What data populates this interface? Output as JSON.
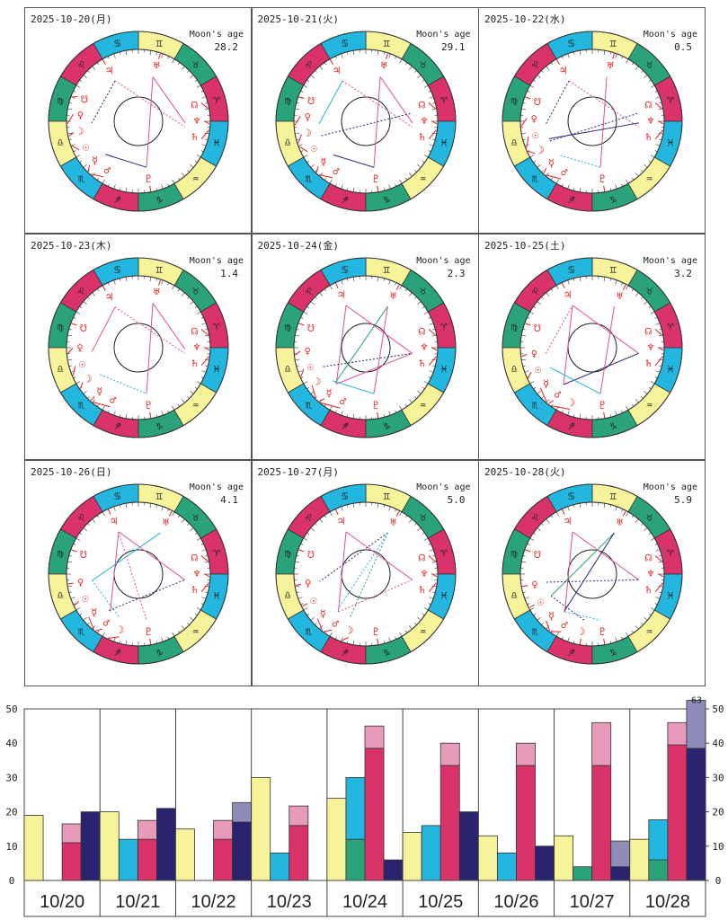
{
  "labels": {
    "moon_age": "Moon's age"
  },
  "colors": {
    "fire": "#d9336a",
    "earth": "#2ba37a",
    "air": "#f7f39a",
    "water": "#23b6df",
    "glyph": "#e8201f",
    "navy": "#2a2470",
    "pink": "#e0519a",
    "cyan": "#23b6df",
    "green": "#2ba37a"
  },
  "zodiac": [
    "♈",
    "♉",
    "♊",
    "♋",
    "♌",
    "♍",
    "♎",
    "♏",
    "♐",
    "♑",
    "♒",
    "♓"
  ],
  "planet_glyphs": {
    "sun": "☉",
    "moon": "☽",
    "mercury": "☿",
    "venus": "♀",
    "mars": "♂",
    "jupiter": "♃",
    "saturn": "♄",
    "uranus": "♅",
    "neptune": "♆",
    "pluto": "♇",
    "node": "☊",
    "snode": "☋"
  },
  "charts": [
    {
      "date": "2025-10-20(月)",
      "moon_age": "28.2",
      "planets": {
        "sun": 200,
        "moon": 192,
        "mercury": 225,
        "venus": 182,
        "mars": 228,
        "jupiter": 120,
        "saturn": 353,
        "uranus": 72,
        "neptune": 358,
        "pluto": 280,
        "node": 10,
        "snode": 160
      },
      "aspects": [
        [
          "jupiter",
          "venus",
          "navy-dash"
        ],
        [
          "jupiter",
          "saturn",
          "pink-dash"
        ],
        [
          "uranus",
          "pluto",
          "pink"
        ],
        [
          "uranus",
          "neptune",
          "pink"
        ],
        [
          "mercury",
          "pluto",
          "navy"
        ]
      ]
    },
    {
      "date": "2025-10-21(火)",
      "moon_age": "29.1",
      "planets": {
        "sun": 201,
        "moon": 198,
        "mercury": 226,
        "venus": 183,
        "mars": 229,
        "jupiter": 120,
        "saturn": 353,
        "uranus": 72,
        "neptune": 358,
        "pluto": 280,
        "node": 10,
        "snode": 160
      },
      "aspects": [
        [
          "jupiter",
          "venus",
          "cyan"
        ],
        [
          "jupiter",
          "saturn",
          "pink-dash"
        ],
        [
          "uranus",
          "pluto",
          "pink"
        ],
        [
          "uranus",
          "neptune",
          "pink"
        ],
        [
          "mercury",
          "pluto",
          "navy"
        ],
        [
          "moon",
          "node",
          "navy-dash"
        ]
      ]
    },
    {
      "date": "2025-10-22(水)",
      "moon_age": "0.5",
      "planets": {
        "sun": 202,
        "moon": 205,
        "mercury": 227,
        "venus": 184,
        "mars": 229,
        "jupiter": 120,
        "saturn": 353,
        "uranus": 72,
        "neptune": 358,
        "pluto": 280,
        "node": 10,
        "snode": 160
      },
      "aspects": [
        [
          "jupiter",
          "venus",
          "navy-dash"
        ],
        [
          "jupiter",
          "saturn",
          "pink-dash"
        ],
        [
          "uranus",
          "pluto",
          "pink"
        ],
        [
          "sun",
          "neptune",
          "navy"
        ],
        [
          "moon",
          "node",
          "navy-dash"
        ],
        [
          "mercury",
          "pluto",
          "cyan-dash"
        ]
      ]
    },
    {
      "date": "2025-10-23(木)",
      "moon_age": "1.4",
      "planets": {
        "sun": 203,
        "moon": 215,
        "mercury": 228,
        "venus": 185,
        "mars": 230,
        "jupiter": 120,
        "saturn": 353,
        "uranus": 72,
        "neptune": 358,
        "pluto": 280,
        "node": 10,
        "snode": 160
      },
      "aspects": [
        [
          "jupiter",
          "venus",
          "pink"
        ],
        [
          "jupiter",
          "saturn",
          "pink-dash"
        ],
        [
          "uranus",
          "pluto",
          "pink"
        ],
        [
          "moon",
          "pluto",
          "cyan-dash"
        ],
        [
          "uranus",
          "neptune",
          "pink"
        ]
      ]
    },
    {
      "date": "2025-10-24(金)",
      "moon_age": "2.3",
      "planets": {
        "sun": 204,
        "moon": 225,
        "mercury": 229,
        "venus": 186,
        "mars": 231,
        "jupiter": 115,
        "saturn": 353,
        "uranus": 62,
        "neptune": 358,
        "pluto": 280,
        "node": 10,
        "snode": 160
      },
      "aspects": [
        [
          "jupiter",
          "mars",
          "pink"
        ],
        [
          "jupiter",
          "saturn",
          "pink"
        ],
        [
          "mars",
          "saturn",
          "pink"
        ],
        [
          "uranus",
          "mercury",
          "green"
        ],
        [
          "moon",
          "pluto",
          "cyan"
        ],
        [
          "sun",
          "saturn",
          "navy-dash"
        ],
        [
          "uranus",
          "pluto",
          "pink"
        ]
      ]
    },
    {
      "date": "2025-10-25(土)",
      "moon_age": "3.2",
      "planets": {
        "sun": 205,
        "moon": 235,
        "mercury": 230,
        "venus": 187,
        "mars": 232,
        "jupiter": 115,
        "saturn": 353,
        "uranus": 62,
        "neptune": 358,
        "pluto": 280,
        "node": 10,
        "snode": 160
      },
      "aspects": [
        [
          "jupiter",
          "mars",
          "pink"
        ],
        [
          "jupiter",
          "saturn",
          "pink"
        ],
        [
          "mars",
          "saturn",
          "navy"
        ],
        [
          "sun",
          "pluto",
          "cyan"
        ],
        [
          "venus",
          "jupiter",
          "pink-dash"
        ],
        [
          "uranus",
          "pluto",
          "pink"
        ]
      ]
    },
    {
      "date": "2025-10-26(日)",
      "moon_age": "4.1",
      "planets": {
        "sun": 206,
        "moon": 245,
        "mercury": 231,
        "venus": 188,
        "mars": 233,
        "jupiter": 115,
        "saturn": 353,
        "uranus": 62,
        "neptune": 358,
        "pluto": 280,
        "node": 10,
        "snode": 160
      },
      "aspects": [
        [
          "jupiter",
          "mars",
          "pink"
        ],
        [
          "jupiter",
          "saturn",
          "pink"
        ],
        [
          "venus",
          "uranus",
          "cyan"
        ],
        [
          "mercury",
          "saturn",
          "navy-dash"
        ],
        [
          "moon",
          "venus",
          "cyan-dash"
        ],
        [
          "jupiter",
          "pluto",
          "pink-dash"
        ]
      ]
    },
    {
      "date": "2025-10-27(月)",
      "moon_age": "5.0",
      "planets": {
        "sun": 207,
        "moon": 250,
        "mercury": 232,
        "venus": 189,
        "mars": 234,
        "jupiter": 115,
        "saturn": 353,
        "uranus": 62,
        "neptune": 358,
        "pluto": 280,
        "node": 10,
        "snode": 160
      },
      "aspects": [
        [
          "jupiter",
          "mars",
          "pink"
        ],
        [
          "jupiter",
          "saturn",
          "pink"
        ],
        [
          "uranus",
          "venus",
          "navy-dash"
        ],
        [
          "uranus",
          "moon",
          "green-dash"
        ],
        [
          "uranus",
          "mercury",
          "cyan-dash"
        ],
        [
          "mars",
          "saturn",
          "pink-dash"
        ]
      ]
    },
    {
      "date": "2025-10-28(火)",
      "moon_age": "5.9",
      "planets": {
        "sun": 208,
        "moon": 260,
        "mercury": 233,
        "venus": 190,
        "mars": 234,
        "jupiter": 115,
        "saturn": 353,
        "uranus": 62,
        "neptune": 358,
        "pluto": 280,
        "node": 10,
        "snode": 160
      },
      "aspects": [
        [
          "jupiter",
          "mars",
          "pink"
        ],
        [
          "jupiter",
          "saturn",
          "pink"
        ],
        [
          "uranus",
          "sun",
          "green"
        ],
        [
          "uranus",
          "mercury",
          "navy"
        ],
        [
          "moon",
          "sun",
          "navy-dash"
        ],
        [
          "mars",
          "pluto",
          "cyan-dash"
        ],
        [
          "venus",
          "saturn",
          "navy-dash"
        ]
      ]
    }
  ],
  "chart_data": {
    "type": "bar",
    "categories": [
      "10/20",
      "10/21",
      "10/22",
      "10/23",
      "10/24",
      "10/25",
      "10/26",
      "10/27",
      "10/28"
    ],
    "ylim": [
      0,
      50
    ],
    "yticks": [
      0,
      10,
      20,
      30,
      40,
      50
    ],
    "series": [
      {
        "name": "yellow",
        "color": "#f7f39a",
        "values": [
          19,
          20,
          15,
          30,
          24,
          14,
          13,
          13,
          12
        ]
      },
      {
        "name": "cyan",
        "color": "#23b6df",
        "base_color": "#2ba37a",
        "base": [
          0,
          0,
          0,
          0,
          12,
          0,
          0,
          4,
          6
        ],
        "values": [
          0,
          12,
          0,
          8,
          30,
          16,
          8,
          4,
          17.7
        ]
      },
      {
        "name": "red",
        "color": "#d9336a",
        "top_color": "#e79ab9",
        "values": [
          11,
          12,
          12,
          16,
          38.5,
          33.5,
          33.5,
          33.5,
          39.5
        ],
        "tops": [
          16.5,
          17.5,
          17.5,
          21.7,
          45,
          40,
          40,
          46,
          46
        ]
      },
      {
        "name": "navy",
        "color": "#2a2470",
        "top_color": "#8e8cb8",
        "values": [
          20,
          21,
          17,
          0,
          6,
          20,
          10,
          4,
          38.5
        ],
        "tops": [
          20,
          21,
          22.7,
          0,
          6,
          20,
          10,
          11.5,
          63
        ]
      }
    ],
    "overflow_label": "63"
  }
}
